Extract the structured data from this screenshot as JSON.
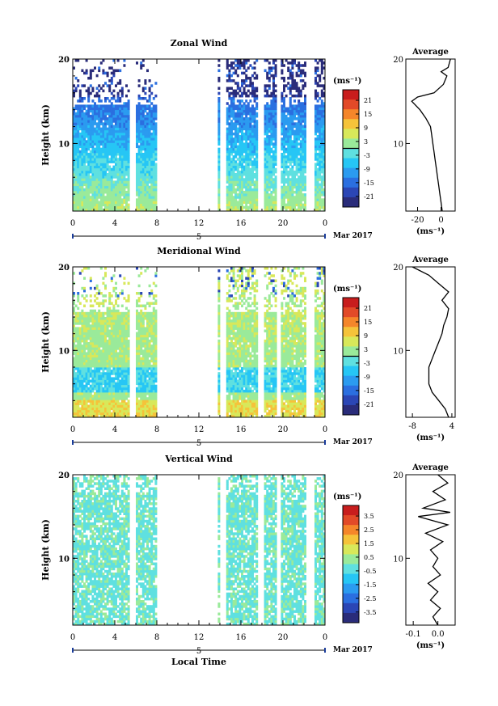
{
  "figure": {
    "shared_x_ticks": [
      "0",
      "4",
      "8",
      "12",
      "16",
      "20",
      "0"
    ],
    "date_label": "5",
    "date_suffix": "Mar 2017",
    "xlabel": "Local Time",
    "ylabel": "Height (km)",
    "avg_title": "Average",
    "unit_label": "(ms⁻¹)"
  },
  "colorscale": [
    "#2a2c7a",
    "#2b46b5",
    "#2b6fe0",
    "#2b9bf0",
    "#26c6f5",
    "#5fe0e0",
    "#9aea9a",
    "#d8e85a",
    "#f5c33a",
    "#f5862a",
    "#e24a28",
    "#c81d1d"
  ],
  "chart_data": [
    {
      "type": "heatmap",
      "title": "Zonal Wind",
      "xlabel": "",
      "ylabel": "Height (km)",
      "x_range_hours": [
        0,
        24
      ],
      "y_range_km": [
        2,
        20
      ],
      "y_ticks": [
        "10",
        "20"
      ],
      "colorbar": {
        "label": "(ms⁻¹)",
        "range": [
          -24,
          24
        ],
        "ticks": [
          "21",
          "15",
          "9",
          "3",
          "-3",
          "-9",
          "-15",
          "-21"
        ]
      },
      "data_gaps_hours": [
        [
          5.5,
          6.0
        ],
        [
          8.0,
          13.8
        ],
        [
          14.1,
          14.7
        ],
        [
          17.6,
          18.1
        ],
        [
          19.5,
          19.9
        ],
        [
          22.2,
          23.0
        ]
      ],
      "average_profile": {
        "xlabel": "(ms⁻¹)",
        "x_ticks": [
          "-20",
          "0"
        ],
        "x_range": [
          -30,
          12
        ],
        "y_ticks": [
          "10",
          "20"
        ],
        "points": [
          [
            1,
            2
          ],
          [
            0,
            3
          ],
          [
            -1,
            4
          ],
          [
            -2,
            5
          ],
          [
            -3,
            6
          ],
          [
            -4,
            7
          ],
          [
            -5,
            8
          ],
          [
            -6,
            9
          ],
          [
            -7,
            10
          ],
          [
            -8,
            11
          ],
          [
            -9,
            12
          ],
          [
            -13,
            13
          ],
          [
            -18,
            14
          ],
          [
            -25,
            15
          ],
          [
            -20,
            15.5
          ],
          [
            -6,
            16
          ],
          [
            2,
            17
          ],
          [
            5,
            18
          ],
          [
            0,
            18.5
          ],
          [
            6,
            19
          ],
          [
            8,
            20
          ]
        ]
      }
    },
    {
      "type": "heatmap",
      "title": "Meridional Wind",
      "xlabel": "",
      "ylabel": "Height (km)",
      "x_range_hours": [
        0,
        24
      ],
      "y_range_km": [
        2,
        20
      ],
      "y_ticks": [
        "10",
        "20"
      ],
      "colorbar": {
        "label": "(ms⁻¹)",
        "range": [
          -24,
          24
        ],
        "ticks": [
          "21",
          "15",
          "9",
          "3",
          "-3",
          "-9",
          "-15",
          "-21"
        ]
      },
      "data_gaps_hours": [
        [
          5.5,
          6.0
        ],
        [
          8.0,
          13.8
        ],
        [
          14.1,
          14.7
        ],
        [
          17.6,
          18.1
        ],
        [
          19.5,
          19.9
        ],
        [
          22.2,
          23.0
        ]
      ],
      "average_profile": {
        "xlabel": "(ms⁻¹)",
        "x_ticks": [
          "-8",
          "4"
        ],
        "x_range": [
          -10,
          5
        ],
        "y_ticks": [
          "10",
          "20"
        ],
        "points": [
          [
            3,
            2
          ],
          [
            2,
            3
          ],
          [
            0,
            4
          ],
          [
            -2,
            5
          ],
          [
            -3,
            6
          ],
          [
            -3,
            7
          ],
          [
            -3,
            8
          ],
          [
            -2,
            9
          ],
          [
            -1,
            10
          ],
          [
            0,
            11
          ],
          [
            1,
            12
          ],
          [
            1.5,
            13
          ],
          [
            2.5,
            14
          ],
          [
            3,
            15
          ],
          [
            1,
            16
          ],
          [
            3,
            17
          ],
          [
            0,
            18
          ],
          [
            -3,
            19
          ],
          [
            -8,
            20
          ]
        ]
      }
    },
    {
      "type": "heatmap",
      "title": "Vertical Wind",
      "xlabel": "Local Time",
      "ylabel": "Height (km)",
      "x_range_hours": [
        0,
        24
      ],
      "y_range_km": [
        2,
        20
      ],
      "y_ticks": [
        "10",
        "20"
      ],
      "colorbar": {
        "label": "(ms⁻¹)",
        "range": [
          -4,
          4
        ],
        "ticks": [
          "3.5",
          "2.5",
          "1.5",
          "0.5",
          "-0.5",
          "-1.5",
          "-2.5",
          "-3.5"
        ]
      },
      "data_gaps_hours": [
        [
          5.5,
          6.0
        ],
        [
          8.0,
          13.8
        ],
        [
          14.1,
          14.7
        ],
        [
          17.6,
          18.1
        ],
        [
          19.5,
          19.9
        ],
        [
          22.2,
          23.0
        ]
      ],
      "average_profile": {
        "xlabel": "(ms⁻¹)",
        "x_ticks": [
          "-0.1",
          "0.0"
        ],
        "x_range": [
          -0.13,
          0.07
        ],
        "y_ticks": [
          "10",
          "20"
        ],
        "points": [
          [
            0.0,
            2
          ],
          [
            -0.02,
            3
          ],
          [
            0.01,
            4
          ],
          [
            -0.03,
            5
          ],
          [
            0.0,
            6
          ],
          [
            -0.04,
            7
          ],
          [
            0.01,
            8
          ],
          [
            -0.02,
            9
          ],
          [
            0.0,
            10
          ],
          [
            -0.03,
            11
          ],
          [
            0.02,
            12
          ],
          [
            -0.05,
            13
          ],
          [
            0.04,
            14
          ],
          [
            -0.08,
            15
          ],
          [
            0.05,
            15.5
          ],
          [
            -0.06,
            16
          ],
          [
            0.03,
            17
          ],
          [
            -0.02,
            18
          ],
          [
            0.04,
            19
          ],
          [
            0.0,
            20
          ]
        ]
      }
    }
  ]
}
